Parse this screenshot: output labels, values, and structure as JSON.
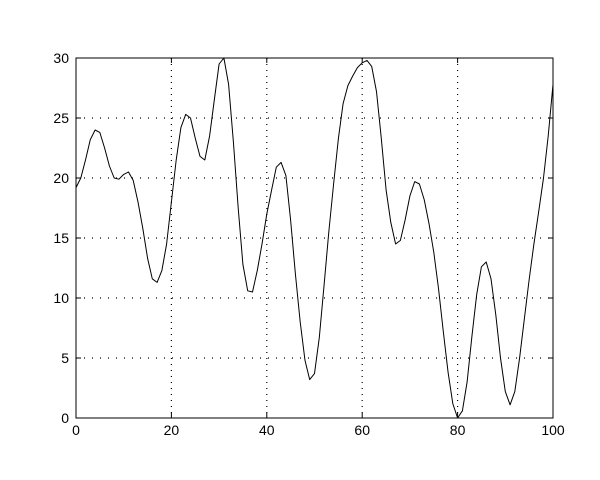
{
  "chart_data": {
    "type": "line",
    "title": "",
    "xlabel": "",
    "ylabel": "",
    "xlim": [
      0,
      100
    ],
    "ylim": [
      0,
      30
    ],
    "grid": true,
    "grid_style": "dotted",
    "x_ticks": [
      "0",
      "20",
      "40",
      "60",
      "80",
      "100"
    ],
    "y_ticks": [
      "0",
      "5",
      "10",
      "15",
      "20",
      "25",
      "30"
    ],
    "line_color": "#000000",
    "series": [
      {
        "x": [
          0,
          1,
          2,
          3,
          4,
          5,
          6,
          7,
          8,
          9,
          10,
          11,
          12,
          13,
          14,
          15,
          16,
          17,
          18,
          19,
          20,
          21,
          22,
          23,
          24,
          25,
          26,
          27,
          28,
          29,
          30,
          31,
          32,
          33,
          34,
          35,
          36,
          37,
          38,
          39,
          40,
          41,
          42,
          43,
          44,
          45,
          46,
          47,
          48,
          49,
          50,
          51,
          52,
          53,
          54,
          55,
          56,
          57,
          58,
          59,
          60,
          61,
          62,
          63,
          64,
          65,
          66,
          67,
          68,
          69,
          70,
          71,
          72,
          73,
          74,
          75,
          76,
          77,
          78,
          79,
          80,
          81,
          82,
          83,
          84,
          85,
          86,
          87,
          88,
          89,
          90,
          91,
          92,
          93,
          94,
          95,
          96,
          97,
          98,
          99,
          100
        ],
        "y": [
          19.2,
          20,
          21.5,
          23.2,
          24,
          23.8,
          22.5,
          21,
          20,
          19.9,
          20.3,
          20.5,
          19.8,
          18,
          15.8,
          13.3,
          11.6,
          11.3,
          12.3,
          14.5,
          18,
          21.5,
          24.2,
          25.3,
          25,
          23.3,
          21.8,
          21.5,
          23.5,
          26.5,
          29.5,
          30,
          27.8,
          23,
          17.5,
          12.8,
          10.6,
          10.5,
          12.3,
          14.5,
          17,
          19,
          20.9,
          21.3,
          20.2,
          16.5,
          12,
          8,
          4.8,
          3.2,
          3.7,
          6.7,
          11,
          15.5,
          19.5,
          23.3,
          26.2,
          27.7,
          28.5,
          29.2,
          29.6,
          29.8,
          29.3,
          27.2,
          23.3,
          19,
          16.3,
          14.5,
          14.8,
          16.5,
          18.5,
          19.7,
          19.5,
          18.2,
          16.2,
          13.8,
          10.8,
          7.2,
          3.8,
          1.2,
          0,
          0.6,
          3,
          6.8,
          10.3,
          12.6,
          13,
          11.6,
          8.6,
          5,
          2.2,
          1.1,
          2.2,
          5,
          8.3,
          11.5,
          14.5,
          17.2,
          20,
          23.5,
          27.8
        ]
      }
    ]
  }
}
